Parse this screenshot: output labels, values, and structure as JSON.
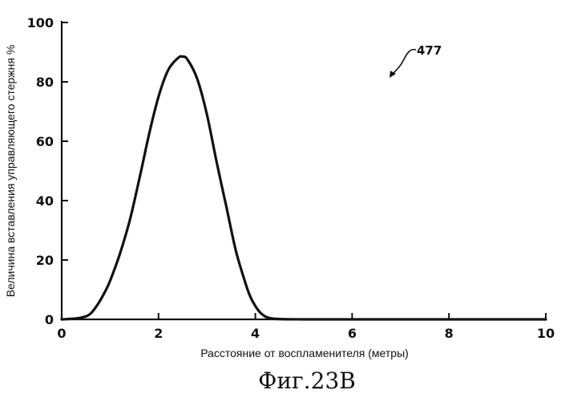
{
  "chart_data": {
    "type": "line",
    "xlabel": "Расстояние от воспламенителя (метры)",
    "ylabel": "Величина вставления управляющего стержня %",
    "xlim": [
      0,
      10
    ],
    "ylim": [
      0,
      100
    ],
    "x_ticks": [
      "0",
      "2",
      "4",
      "6",
      "8",
      "10"
    ],
    "y_ticks": [
      "0",
      "20",
      "40",
      "60",
      "80",
      "100"
    ],
    "grid": false,
    "series": [
      {
        "x": [
          0,
          0.3,
          0.5,
          0.6,
          0.7,
          0.8,
          0.9,
          1.0,
          1.2,
          1.4,
          1.6,
          1.8,
          2.0,
          2.2,
          2.4,
          2.5,
          2.6,
          2.8,
          3.0,
          3.2,
          3.4,
          3.6,
          3.8,
          3.9,
          4.0,
          4.1,
          4.2,
          4.3,
          4.5,
          5,
          6,
          7,
          8,
          9,
          10
        ],
        "y": [
          0,
          0.3,
          1.0,
          2.0,
          4.0,
          6.5,
          9.5,
          13,
          22,
          33,
          47,
          62,
          75,
          84,
          88,
          88.5,
          87.5,
          81,
          69,
          53,
          38,
          23,
          12,
          7.5,
          4.5,
          2.3,
          1.0,
          0.4,
          0.1,
          0,
          0,
          0,
          0,
          0,
          0
        ]
      }
    ]
  },
  "annotation": {
    "ref_number": "477"
  },
  "caption": "Фиг.23В"
}
